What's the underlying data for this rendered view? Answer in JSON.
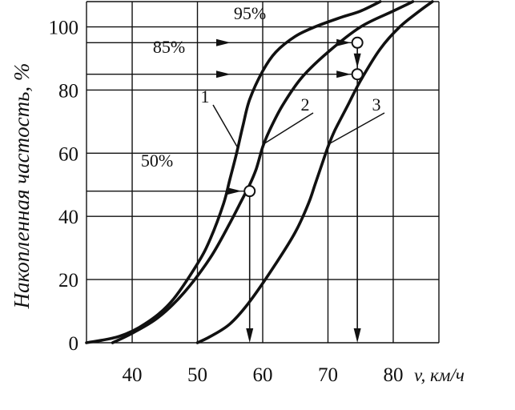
{
  "chart_data": {
    "type": "line",
    "title": "",
    "ylabel": "Накопленная частость, %",
    "xlabel": "v, км/ч",
    "xlim": [
      33,
      87
    ],
    "ylim": [
      0,
      108
    ],
    "x_ticks": [
      40,
      50,
      60,
      70,
      80
    ],
    "y_ticks": [
      0,
      20,
      40,
      60,
      80,
      100
    ],
    "grid": true,
    "series": [
      {
        "name": "1",
        "x": [
          33,
          38,
          42,
          46,
          50,
          52,
          54,
          55,
          56,
          57,
          58,
          60,
          62,
          65,
          68,
          72,
          75,
          78
        ],
        "y": [
          0,
          2,
          6,
          13,
          25,
          33,
          44,
          52,
          60,
          69,
          77,
          86,
          92,
          97,
          100,
          103,
          105,
          108
        ]
      },
      {
        "name": "2",
        "x": [
          37,
          40,
          44,
          48,
          52,
          55,
          57,
          58,
          59,
          60,
          61,
          63,
          66,
          70,
          75,
          80,
          83
        ],
        "y": [
          0,
          3,
          8,
          16,
          27,
          38,
          46,
          50,
          55,
          62,
          67,
          75,
          84,
          92,
          100,
          105,
          108
        ]
      },
      {
        "name": "3",
        "x": [
          50,
          52,
          55,
          58,
          62,
          65,
          67,
          68,
          69,
          70,
          71,
          73,
          75,
          78,
          81,
          84,
          86
        ],
        "y": [
          0,
          2,
          6,
          13,
          25,
          35,
          44,
          50,
          56,
          62,
          67,
          75,
          83,
          93,
          100,
          105,
          108
        ]
      }
    ],
    "annotations": [
      {
        "label": "95%",
        "arrow_y": 95,
        "arrow_from_x": 33,
        "arrow_to_x": 74.5,
        "marker": [
          74.5,
          95
        ]
      },
      {
        "label": "85%",
        "arrow_y": 85,
        "arrow_from_x": 33,
        "arrow_to_x": 74.5,
        "marker": [
          74.5,
          85
        ]
      },
      {
        "label": "50%",
        "arrow_y": 48,
        "arrow_from_x": 33,
        "arrow_to_x": 58,
        "marker": [
          58,
          48
        ]
      }
    ]
  }
}
